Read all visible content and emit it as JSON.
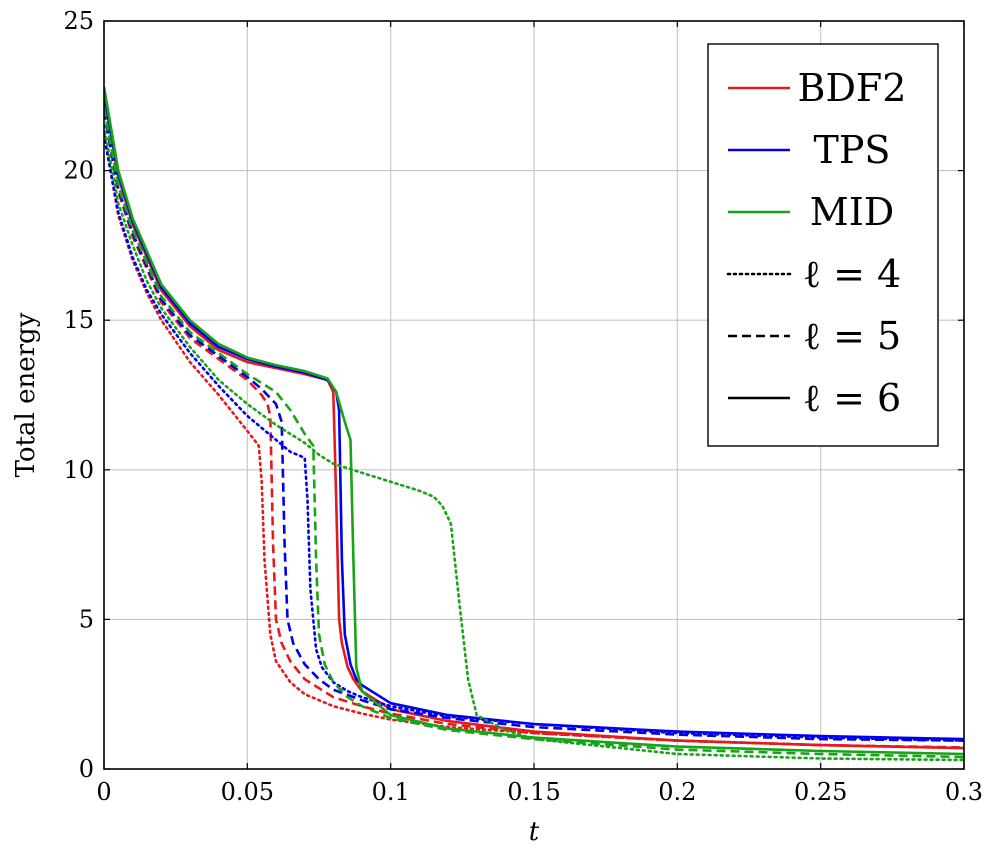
{
  "chart_data": {
    "type": "line",
    "xlabel": "t",
    "ylabel": "Total energy",
    "xlim": [
      0,
      0.3
    ],
    "ylim": [
      0,
      25
    ],
    "xticks": [
      0,
      0.05,
      0.1,
      0.15,
      0.2,
      0.25,
      0.3
    ],
    "xtick_labels": [
      "0",
      "0.05",
      "0.1",
      "0.15",
      "0.2",
      "0.25",
      "0.3"
    ],
    "yticks": [
      0,
      5,
      10,
      15,
      20,
      25
    ],
    "ytick_labels": [
      "0",
      "5",
      "10",
      "15",
      "20",
      "25"
    ],
    "grid": true,
    "legend_position": "top-right",
    "legend": [
      {
        "label": "BDF2",
        "color": "#e41a1c",
        "dash": "solid"
      },
      {
        "label": "TPS",
        "color": "#0000ee",
        "dash": "solid"
      },
      {
        "label": "MID",
        "color": "#17a517",
        "dash": "solid"
      },
      {
        "label": "ℓ = 4",
        "color": "#000000",
        "dash": "dotted"
      },
      {
        "label": "ℓ = 5",
        "color": "#000000",
        "dash": "dashed"
      },
      {
        "label": "ℓ = 6",
        "color": "#000000",
        "dash": "solid"
      }
    ],
    "colors": {
      "BDF2": "#e41a1c",
      "TPS": "#0000ee",
      "MID": "#17a517"
    },
    "series": [
      {
        "method": "BDF2",
        "level": 4,
        "dash": "dotted",
        "x": [
          0,
          0.005,
          0.01,
          0.015,
          0.02,
          0.03,
          0.04,
          0.05,
          0.054,
          0.055,
          0.056,
          0.058,
          0.06,
          0.065,
          0.07,
          0.08,
          0.09,
          0.1,
          0.12,
          0.15,
          0.2,
          0.25,
          0.3
        ],
        "y": [
          21.2,
          18.5,
          17.0,
          15.9,
          15.0,
          13.6,
          12.5,
          11.3,
          10.8,
          9.6,
          7.0,
          4.5,
          3.6,
          2.9,
          2.5,
          2.1,
          1.85,
          1.65,
          1.4,
          1.2,
          0.95,
          0.8,
          0.7
        ]
      },
      {
        "method": "BDF2",
        "level": 5,
        "dash": "dashed",
        "x": [
          0,
          0.005,
          0.01,
          0.02,
          0.03,
          0.04,
          0.05,
          0.055,
          0.057,
          0.058,
          0.059,
          0.06,
          0.062,
          0.065,
          0.07,
          0.08,
          0.09,
          0.1,
          0.12,
          0.15,
          0.2,
          0.25,
          0.3
        ],
        "y": [
          22.0,
          19.3,
          17.8,
          15.6,
          14.4,
          13.7,
          13.0,
          12.5,
          12.2,
          11.8,
          7.5,
          5.0,
          4.2,
          3.6,
          3.0,
          2.4,
          2.1,
          1.85,
          1.5,
          1.2,
          0.95,
          0.8,
          0.72
        ]
      },
      {
        "method": "BDF2",
        "level": 6,
        "dash": "solid",
        "x": [
          0,
          0.005,
          0.01,
          0.02,
          0.03,
          0.04,
          0.05,
          0.06,
          0.07,
          0.078,
          0.08,
          0.081,
          0.082,
          0.083,
          0.085,
          0.087,
          0.09,
          0.1,
          0.12,
          0.15,
          0.2,
          0.25,
          0.3
        ],
        "y": [
          22.5,
          19.8,
          18.2,
          16.0,
          14.8,
          14.0,
          13.6,
          13.4,
          13.2,
          13.0,
          12.6,
          9.0,
          5.0,
          4.2,
          3.4,
          3.0,
          2.6,
          2.0,
          1.6,
          1.25,
          0.95,
          0.8,
          0.7
        ]
      },
      {
        "method": "TPS",
        "level": 4,
        "dash": "dotted",
        "x": [
          0,
          0.005,
          0.01,
          0.015,
          0.02,
          0.03,
          0.04,
          0.05,
          0.06,
          0.065,
          0.07,
          0.071,
          0.072,
          0.074,
          0.076,
          0.08,
          0.085,
          0.09,
          0.1,
          0.12,
          0.15,
          0.2,
          0.25,
          0.3
        ],
        "y": [
          21.2,
          18.6,
          17.1,
          16.0,
          15.2,
          13.9,
          12.8,
          11.8,
          11.0,
          10.6,
          10.4,
          9.0,
          6.0,
          4.0,
          3.4,
          2.9,
          2.6,
          2.4,
          2.1,
          1.75,
          1.5,
          1.2,
          1.05,
          0.95
        ]
      },
      {
        "method": "TPS",
        "level": 5,
        "dash": "dashed",
        "x": [
          0,
          0.005,
          0.01,
          0.02,
          0.03,
          0.04,
          0.05,
          0.055,
          0.06,
          0.062,
          0.063,
          0.064,
          0.066,
          0.07,
          0.075,
          0.08,
          0.09,
          0.1,
          0.12,
          0.15,
          0.2,
          0.25,
          0.3
        ],
        "y": [
          22.0,
          19.4,
          17.9,
          15.7,
          14.5,
          13.8,
          13.1,
          12.7,
          12.2,
          11.6,
          7.5,
          5.0,
          4.2,
          3.5,
          3.0,
          2.65,
          2.3,
          2.0,
          1.7,
          1.4,
          1.15,
          1.0,
          0.95
        ]
      },
      {
        "method": "TPS",
        "level": 6,
        "dash": "solid",
        "x": [
          0,
          0.005,
          0.01,
          0.02,
          0.03,
          0.04,
          0.05,
          0.06,
          0.07,
          0.078,
          0.081,
          0.082,
          0.083,
          0.084,
          0.086,
          0.088,
          0.09,
          0.1,
          0.12,
          0.15,
          0.2,
          0.25,
          0.3
        ],
        "y": [
          22.6,
          19.9,
          18.3,
          16.1,
          14.9,
          14.1,
          13.7,
          13.45,
          13.25,
          13.0,
          12.6,
          12.0,
          7.0,
          4.5,
          3.5,
          3.0,
          2.8,
          2.2,
          1.8,
          1.5,
          1.25,
          1.1,
          1.0
        ]
      },
      {
        "method": "MID",
        "level": 4,
        "dash": "dotted",
        "x": [
          0,
          0.005,
          0.01,
          0.015,
          0.02,
          0.03,
          0.04,
          0.05,
          0.06,
          0.07,
          0.075,
          0.08,
          0.09,
          0.1,
          0.11,
          0.115,
          0.118,
          0.121,
          0.124,
          0.127,
          0.13,
          0.14,
          0.15,
          0.2,
          0.25,
          0.3
        ],
        "y": [
          21.5,
          18.9,
          17.5,
          16.3,
          15.4,
          14.1,
          13.0,
          12.2,
          11.5,
          10.9,
          10.5,
          10.2,
          9.9,
          9.6,
          9.3,
          9.1,
          8.8,
          8.2,
          5.5,
          3.0,
          1.8,
          1.3,
          1.0,
          0.5,
          0.35,
          0.3
        ]
      },
      {
        "method": "MID",
        "level": 5,
        "dash": "dashed",
        "x": [
          0,
          0.005,
          0.01,
          0.02,
          0.03,
          0.04,
          0.05,
          0.06,
          0.065,
          0.07,
          0.073,
          0.074,
          0.075,
          0.077,
          0.08,
          0.085,
          0.09,
          0.1,
          0.12,
          0.15,
          0.2,
          0.25,
          0.3
        ],
        "y": [
          22.1,
          19.5,
          18.0,
          15.8,
          14.6,
          13.9,
          13.2,
          12.6,
          12.0,
          11.2,
          10.8,
          7.0,
          4.5,
          3.5,
          2.9,
          2.4,
          2.1,
          1.7,
          1.3,
          1.0,
          0.65,
          0.5,
          0.4
        ]
      },
      {
        "method": "MID",
        "level": 6,
        "dash": "solid",
        "x": [
          0,
          0.005,
          0.01,
          0.02,
          0.03,
          0.04,
          0.05,
          0.06,
          0.07,
          0.078,
          0.081,
          0.084,
          0.086,
          0.087,
          0.088,
          0.09,
          0.1,
          0.12,
          0.15,
          0.2,
          0.25,
          0.3
        ],
        "y": [
          22.8,
          20.0,
          18.4,
          16.2,
          15.0,
          14.2,
          13.75,
          13.5,
          13.3,
          13.05,
          12.6,
          11.6,
          11.0,
          7.0,
          3.4,
          2.6,
          1.8,
          1.35,
          1.05,
          0.75,
          0.6,
          0.5
        ]
      }
    ]
  }
}
